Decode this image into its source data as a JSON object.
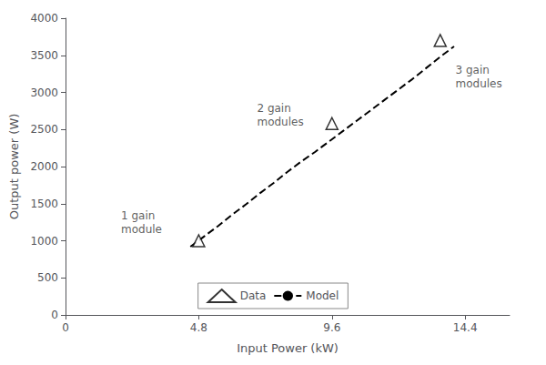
{
  "chart_data": {
    "type": "line",
    "xlabel": "Input Power (kW)",
    "ylabel": "Output power (W)",
    "xlim": [
      0,
      16
    ],
    "ylim": [
      0,
      4000
    ],
    "xticks": [
      0,
      4.8,
      9.6,
      14.4
    ],
    "yticks": [
      0,
      500,
      1000,
      1500,
      2000,
      2500,
      3000,
      3500,
      4000
    ],
    "grid": false,
    "legend": "lower center",
    "series": [
      {
        "name": "Data",
        "type": "scatter",
        "marker": "triangle",
        "color": "black",
        "x": [
          4.8,
          9.6,
          13.5
        ],
        "values": [
          1000,
          2580,
          3700
        ]
      },
      {
        "name": "Model",
        "type": "line",
        "line_style": "dashed",
        "color": "black",
        "x": [
          4.5,
          5.0,
          5.5,
          6.0,
          6.5,
          7.0,
          7.5,
          8.0,
          8.5,
          9.0,
          9.5,
          10.0,
          10.5,
          11.0,
          11.5,
          12.0,
          12.5,
          13.0,
          13.5,
          14.0
        ],
        "values": [
          920,
          1060,
          1200,
          1350,
          1490,
          1640,
          1780,
          1930,
          2070,
          2200,
          2340,
          2480,
          2620,
          2760,
          2900,
          3040,
          3180,
          3330,
          3480,
          3620
        ]
      }
    ],
    "annotations": [
      {
        "text": "1 gain\nmodule",
        "x": 2.0,
        "y": 1430
      },
      {
        "text": "2 gain\nmodules",
        "x": 6.9,
        "y": 2880
      },
      {
        "text": "3 gain\nmodules",
        "x": 14.05,
        "y": 3390
      }
    ]
  }
}
